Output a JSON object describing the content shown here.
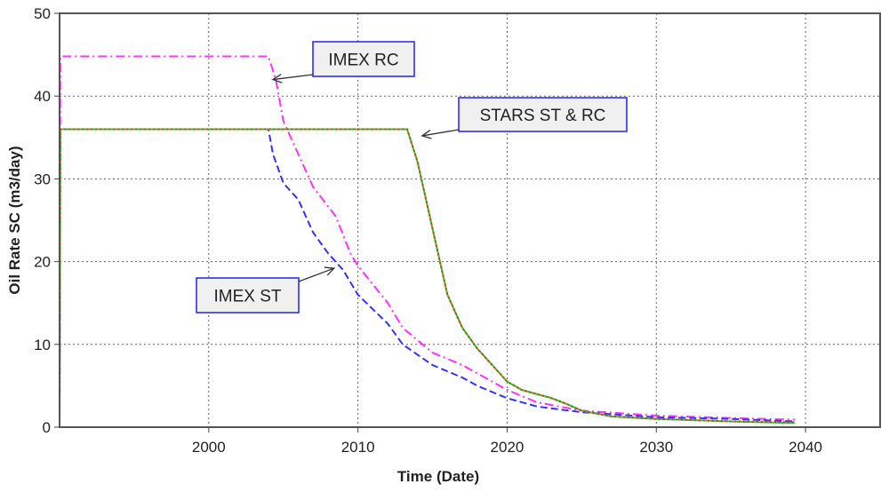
{
  "chart_data": {
    "type": "line",
    "title": "",
    "xlabel": "Time (Date)",
    "ylabel": "Oil Rate SC (m3/day)",
    "xlim": [
      1990,
      2045
    ],
    "ylim": [
      0,
      50
    ],
    "xticks": [
      2000,
      2010,
      2020,
      2030,
      2040
    ],
    "yticks": [
      0,
      10,
      20,
      30,
      40,
      50
    ],
    "grid": true,
    "series": [
      {
        "name": "IMEX RC",
        "color": "#ff33ff",
        "dash": "dashdot",
        "x": [
          1990,
          1990.05,
          2004,
          2004.5,
          2005,
          2006,
          2007,
          2008.5,
          2009.5,
          2010,
          2012,
          2013,
          2015,
          2017,
          2018,
          2020,
          2022,
          2025,
          2030,
          2035,
          2039.3
        ],
        "y": [
          0,
          44.8,
          44.8,
          42,
          37,
          33,
          29,
          25.5,
          21,
          19.5,
          15,
          12,
          9,
          7.5,
          6.5,
          4.5,
          3,
          2,
          1.4,
          1.1,
          0.9
        ]
      },
      {
        "name": "IMEX ST",
        "color": "#3333ff",
        "dash": "dashed",
        "x": [
          1990,
          1990.05,
          2004,
          2004.3,
          2005,
          2006,
          2007,
          2008,
          2009,
          2010,
          2012,
          2013,
          2015,
          2017,
          2018,
          2020,
          2022,
          2025,
          2030,
          2035,
          2039.3
        ],
        "y": [
          0,
          36,
          36,
          33,
          29.5,
          27.5,
          23.5,
          21,
          19,
          16,
          12.5,
          10,
          7.5,
          6,
          5,
          3.5,
          2.5,
          1.8,
          1.2,
          1.0,
          0.7
        ]
      },
      {
        "name": "STARS ST",
        "color": "#22cc22",
        "dash": "solid",
        "x": [
          1990,
          1990.05,
          2013.3,
          2014,
          2015,
          2015.5,
          2016,
          2017,
          2018,
          2019,
          2020,
          2021,
          2023,
          2024,
          2025,
          2027,
          2030,
          2035,
          2039.3
        ],
        "y": [
          0,
          36,
          36,
          32,
          24,
          20,
          16,
          12,
          9.5,
          7.5,
          5.5,
          4.5,
          3.5,
          2.8,
          2,
          1.3,
          1.0,
          0.7,
          0.5
        ]
      },
      {
        "name": "STARS RC",
        "color": "#ff2222",
        "dash": "dotted",
        "x": [
          1990,
          1990.05,
          2013.3,
          2014,
          2015,
          2015.5,
          2016,
          2017,
          2018,
          2019,
          2020,
          2021,
          2023,
          2024,
          2025,
          2027,
          2030,
          2035,
          2039.3
        ],
        "y": [
          0,
          36,
          36,
          32,
          24,
          20,
          16,
          12,
          9.5,
          7.5,
          5.5,
          4.5,
          3.5,
          2.8,
          2,
          1.3,
          1.0,
          0.7,
          0.6
        ]
      }
    ],
    "annotations": [
      {
        "text": "IMEX RC",
        "target": [
          2004.3,
          42
        ]
      },
      {
        "text": "STARS ST & RC",
        "target": [
          2014.3,
          35.2
        ]
      },
      {
        "text": "IMEX ST",
        "target": [
          2008.4,
          19.2
        ]
      }
    ]
  }
}
